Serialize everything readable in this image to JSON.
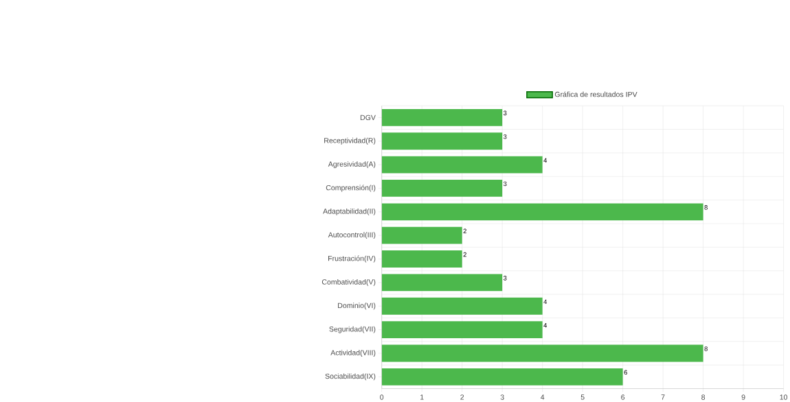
{
  "chart_data": {
    "type": "bar",
    "orientation": "horizontal",
    "categories": [
      "DGV",
      "Receptividad(R)",
      "Agresividad(A)",
      "Comprensión(I)",
      "Adaptabilidad(II)",
      "Autocontrol(III)",
      "Frustración(IV)",
      "Combatividad(V)",
      "Dominio(VI)",
      "Seguridad(VII)",
      "Actividad(VIII)",
      "Sociabilidad(IX)"
    ],
    "series": [
      {
        "name": "Gráfica de resultados IPV",
        "color": "#4cb84c",
        "values": [
          3,
          3,
          4,
          3,
          8,
          2,
          2,
          3,
          4,
          4,
          8,
          6
        ]
      }
    ],
    "xlim": [
      0,
      10
    ],
    "xticks": [
      0,
      1,
      2,
      3,
      4,
      5,
      6,
      7,
      8,
      9,
      10
    ],
    "grid": true,
    "legend": "top",
    "data_labels": true
  }
}
